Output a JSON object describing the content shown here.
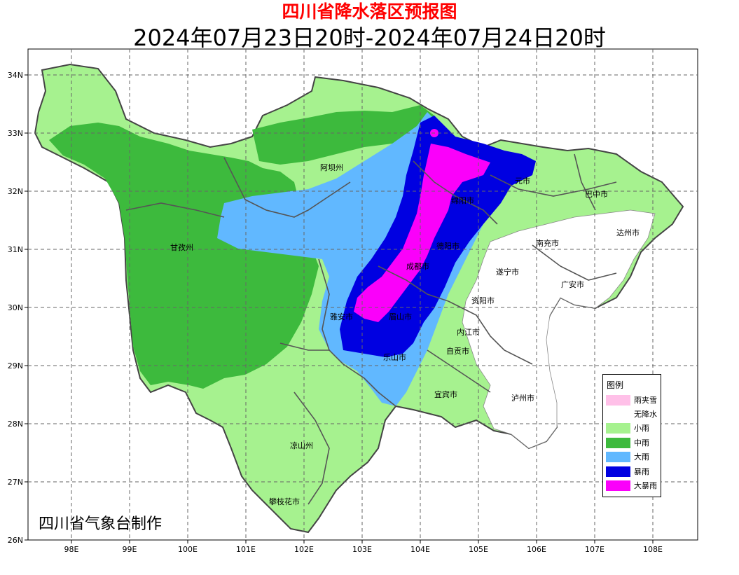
{
  "title": "四川省降水落区预报图",
  "subtitle": "2024年07月23日20时-2024年07月24日20时",
  "producer": "四川省气象台制作",
  "axes": {
    "lat_labels": [
      "34N",
      "33N",
      "32N",
      "31N",
      "30N",
      "29N",
      "28N",
      "27N",
      "26N"
    ],
    "lon_labels": [
      "98E",
      "99E",
      "100E",
      "101E",
      "102E",
      "103E",
      "104E",
      "105E",
      "106E",
      "107E",
      "108E"
    ],
    "grid": "dashed"
  },
  "cities": [
    "阿坝州",
    "甘孜州",
    "凉山州",
    "攀枝花市",
    "雅安市",
    "眉山市",
    "乐山市",
    "成都市",
    "德阳市",
    "绵阳市",
    "元市",
    "巴中市",
    "达州市",
    "南充市",
    "遂宁市",
    "广安市",
    "资阳市",
    "内江市",
    "自贡市",
    "宜宾市",
    "泸州市"
  ],
  "legend": {
    "title": "图例",
    "items": [
      {
        "label": "雨夹雪",
        "color": "#ffc0e8"
      },
      {
        "label": "无降水",
        "color": "#ffffff"
      },
      {
        "label": "小雨",
        "color": "#a6f28f"
      },
      {
        "label": "中雨",
        "color": "#3dba3d"
      },
      {
        "label": "大雨",
        "color": "#61b8ff"
      },
      {
        "label": "暴雨",
        "color": "#0000e1"
      },
      {
        "label": "大暴雨",
        "color": "#fa00fa"
      }
    ]
  }
}
